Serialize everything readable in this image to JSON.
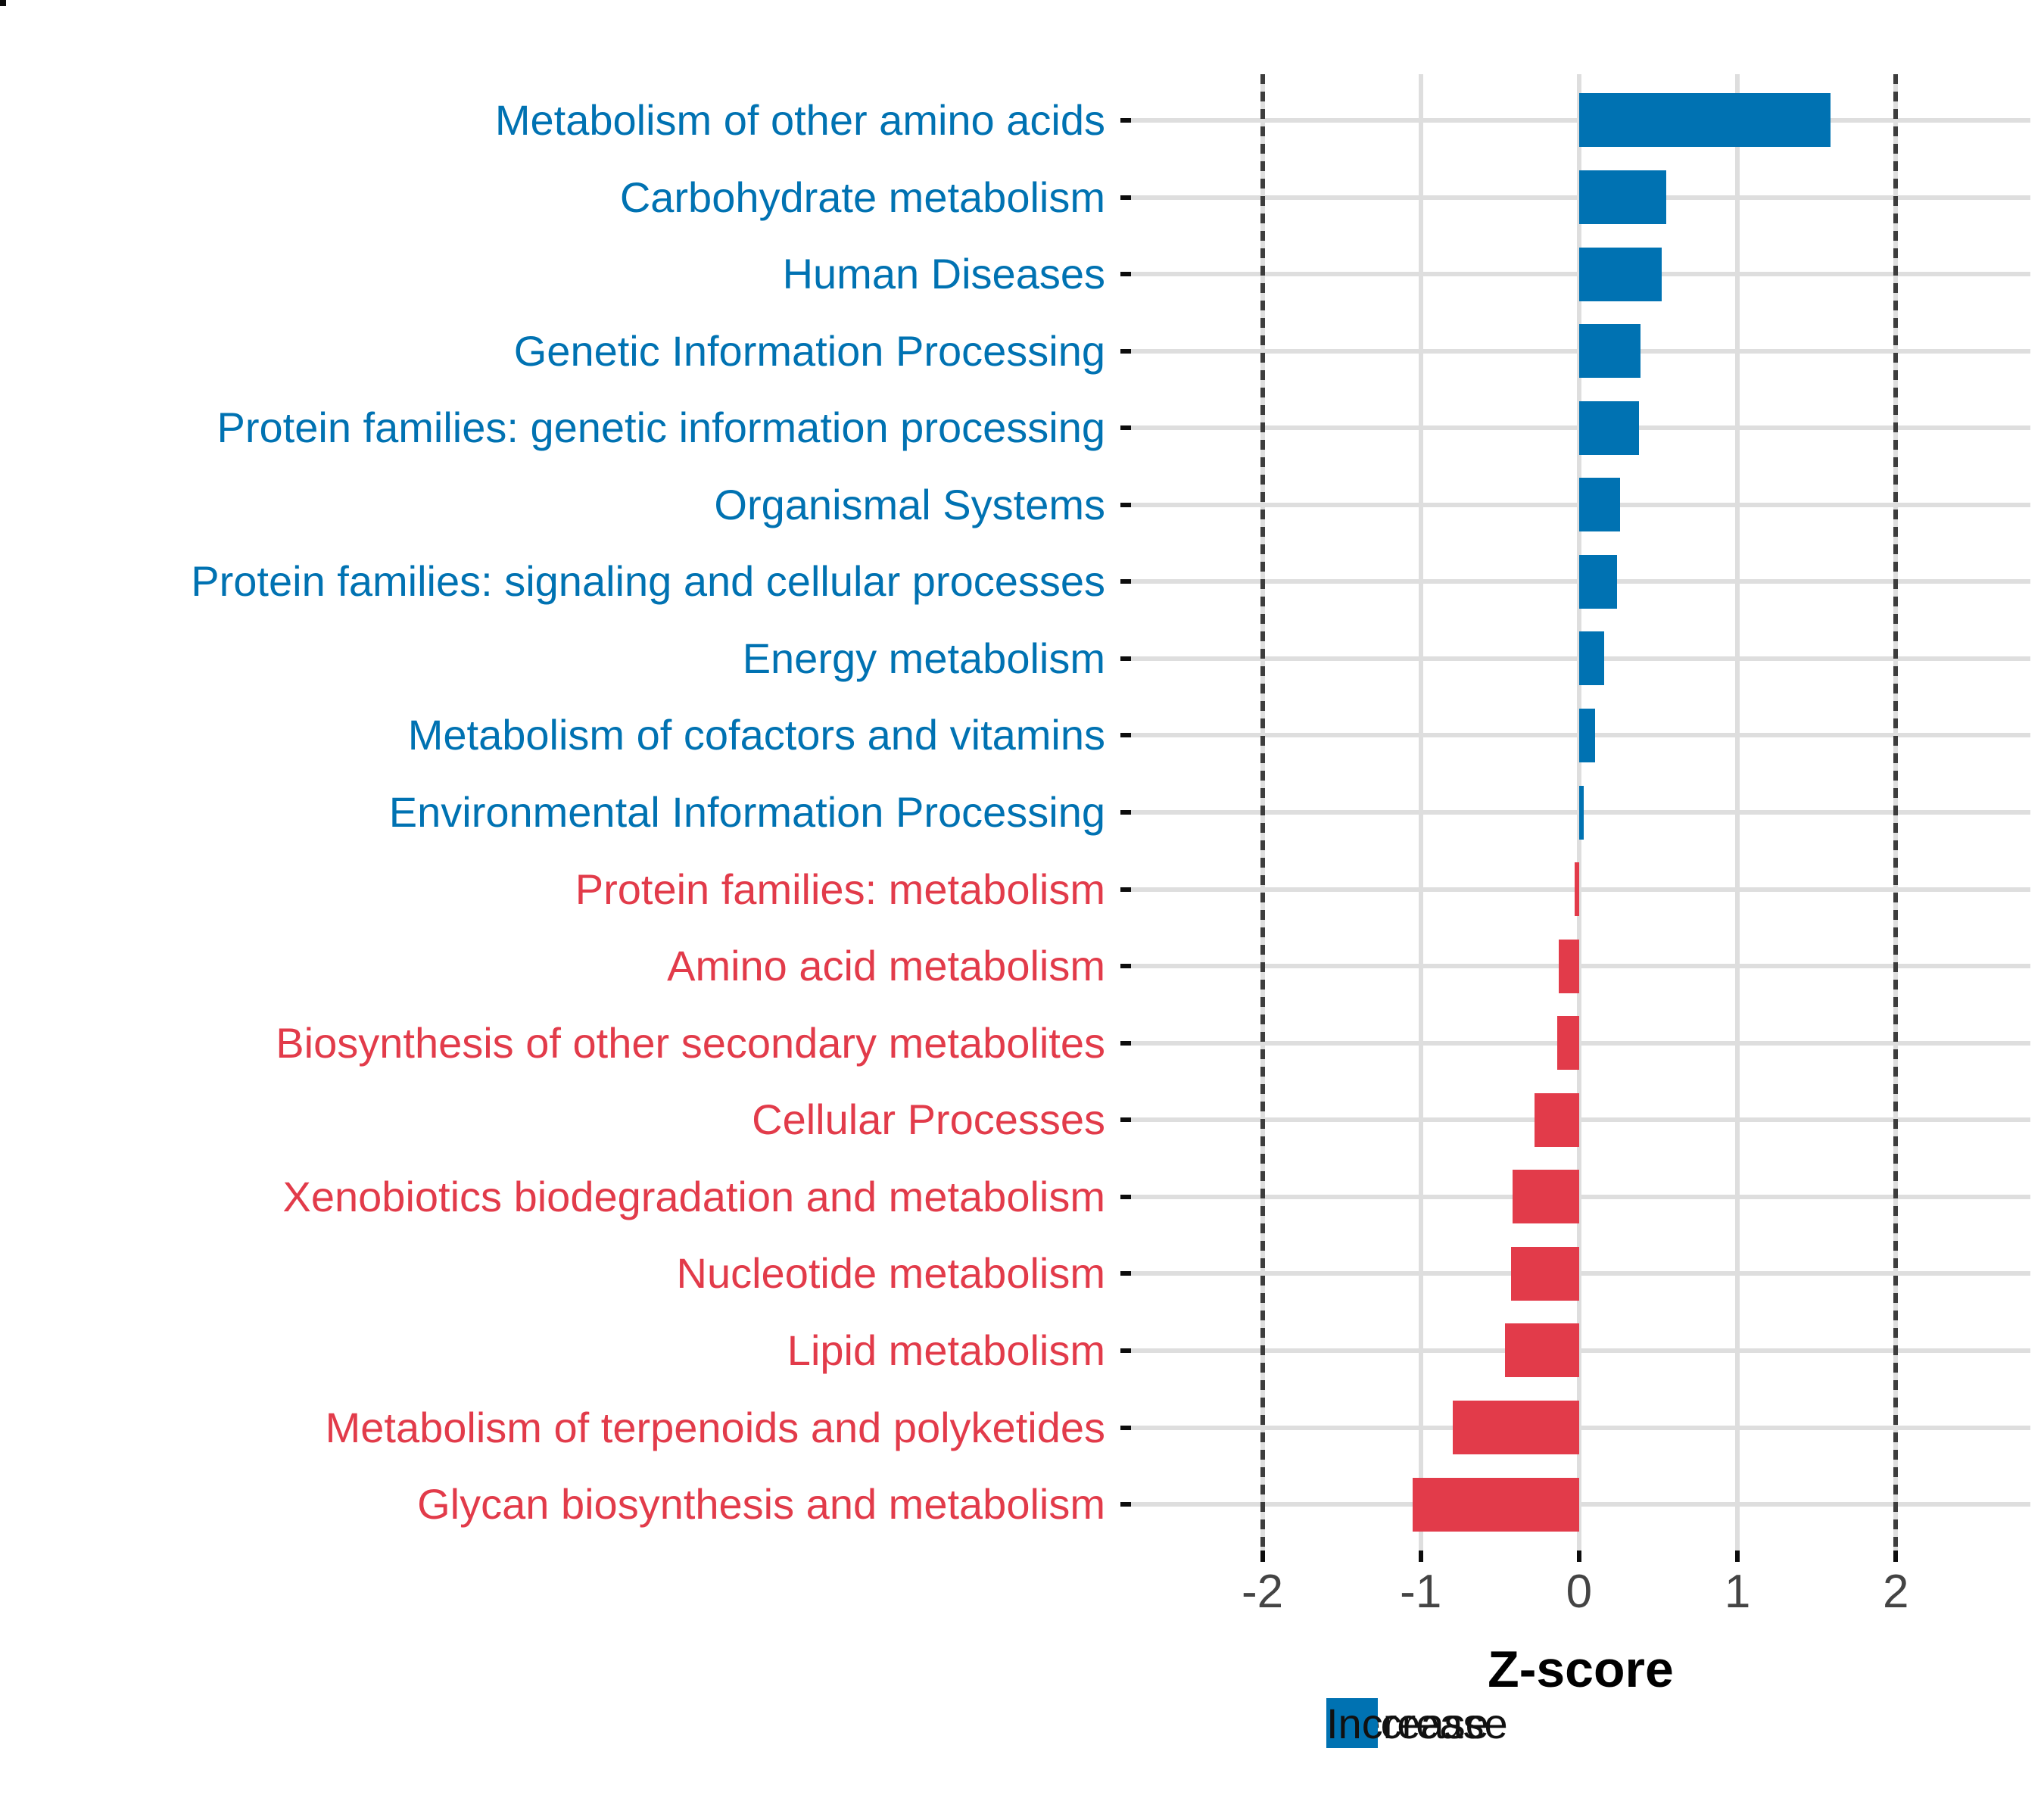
{
  "chart_data": {
    "type": "bar",
    "orientation": "horizontal",
    "title": "",
    "xlabel": "Z-score",
    "ylabel": "",
    "xlim": [
      -2.83,
      2.85
    ],
    "grid": "major-on",
    "x_ticks": [
      {
        "label": "-2",
        "value": -2
      },
      {
        "label": "-1",
        "value": -1
      },
      {
        "label": "0",
        "value": 0
      },
      {
        "label": "1",
        "value": 1
      },
      {
        "label": "2",
        "value": 2
      }
    ],
    "reference_lines": [
      -2,
      2
    ],
    "categories": [
      {
        "label": "Metabolism of other amino acids",
        "value": 1.59,
        "group": "increase"
      },
      {
        "label": "Carbohydrate metabolism",
        "value": 0.55,
        "group": "increase"
      },
      {
        "label": "Human Diseases",
        "value": 0.52,
        "group": "increase"
      },
      {
        "label": "Genetic Information Processing",
        "value": 0.39,
        "group": "increase"
      },
      {
        "label": "Protein families: genetic information processing",
        "value": 0.38,
        "group": "increase"
      },
      {
        "label": "Organismal Systems",
        "value": 0.26,
        "group": "increase"
      },
      {
        "label": "Protein families: signaling and cellular processes",
        "value": 0.24,
        "group": "increase"
      },
      {
        "label": "Energy metabolism",
        "value": 0.16,
        "group": "increase"
      },
      {
        "label": "Metabolism of cofactors and vitamins",
        "value": 0.1,
        "group": "increase"
      },
      {
        "label": "Environmental Information Processing",
        "value": 0.03,
        "group": "increase"
      },
      {
        "label": "Protein families: metabolism",
        "value": -0.03,
        "group": "decrease"
      },
      {
        "label": "Amino acid metabolism",
        "value": -0.13,
        "group": "decrease"
      },
      {
        "label": "Biosynthesis of other secondary metabolites",
        "value": -0.14,
        "group": "decrease"
      },
      {
        "label": "Cellular Processes",
        "value": -0.28,
        "group": "decrease"
      },
      {
        "label": "Xenobiotics biodegradation and metabolism",
        "value": -0.42,
        "group": "decrease"
      },
      {
        "label": "Nucleotide metabolism",
        "value": -0.43,
        "group": "decrease"
      },
      {
        "label": "Lipid metabolism",
        "value": -0.47,
        "group": "decrease"
      },
      {
        "label": "Metabolism of terpenoids and polyketides",
        "value": -0.8,
        "group": "decrease"
      },
      {
        "label": "Glycan biosynthesis and metabolism",
        "value": -1.05,
        "group": "decrease"
      }
    ],
    "legend_position": "bottom"
  },
  "legend": {
    "items": [
      {
        "label": "Decrease",
        "group": "decrease"
      },
      {
        "label": "Increase",
        "group": "increase"
      }
    ]
  },
  "colors": {
    "increase": "#0072B2",
    "decrease": "#E23B4A",
    "grid": "#DEDEDE",
    "refline": "#3D3D3D",
    "axis_text": "#444444",
    "axis_title": "#000000",
    "panel_border": "#0D0D0D"
  }
}
